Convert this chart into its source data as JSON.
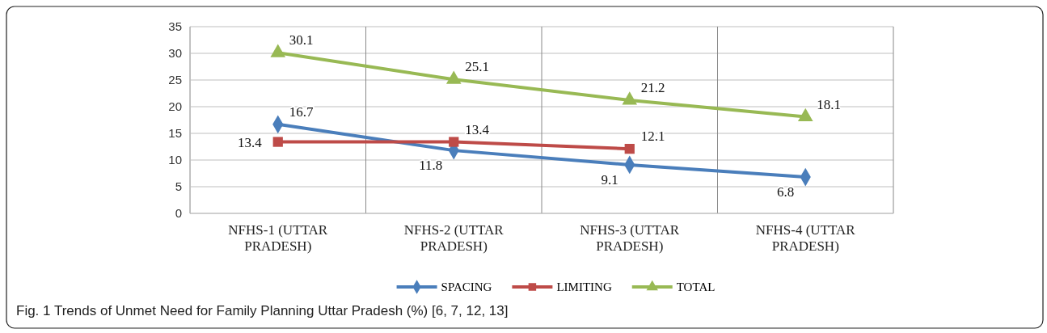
{
  "chart_data": {
    "type": "line",
    "categories": [
      "NFHS-1 (UTTAR PRADESH)",
      "NFHS-2 (UTTAR PRADESH)",
      "NFHS-3 (UTTAR PRADESH)",
      "NFHS-4 (UTTAR PRADESH)"
    ],
    "series": [
      {
        "name": "SPACING",
        "color": "#4a7ebb",
        "marker": "diamond",
        "values": [
          16.7,
          11.8,
          9.1,
          6.8
        ]
      },
      {
        "name": "LIMITING",
        "color": "#be4b48",
        "marker": "square",
        "values": [
          13.4,
          13.4,
          12.1,
          null
        ]
      },
      {
        "name": "TOTAL",
        "color": "#98b954",
        "marker": "triangle",
        "values": [
          30.1,
          25.1,
          21.2,
          18.1
        ]
      }
    ],
    "ylim": [
      0,
      35
    ],
    "yticks": [
      0,
      5,
      10,
      15,
      20,
      25,
      30,
      35
    ],
    "grid": true,
    "legend": "bottom",
    "data_labels": true,
    "line_style": "solid",
    "annotations": [
      "Fig. 1 Trends of Unmet Need for Family Planning Uttar Pradesh (%) [6, 7, 12, 13]"
    ]
  }
}
